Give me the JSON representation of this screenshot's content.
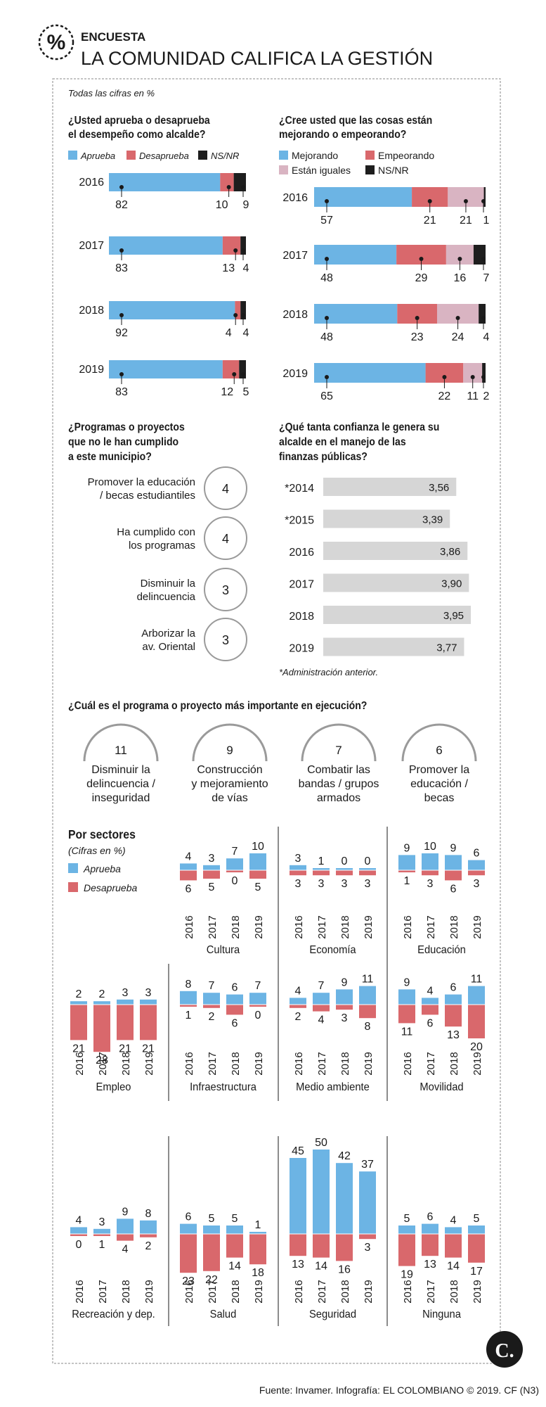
{
  "header": {
    "tag": "ENCUESTA",
    "title": "LA COMUNIDAD CALIFICA LA GESTIÓN",
    "note": "Todas las cifras en %"
  },
  "colors": {
    "aprueba": "#6cb4e4",
    "desaprueba": "#d9686c",
    "iguales": "#d9b4c2",
    "nsnr": "#1e1e1e",
    "gray": "#d6d6d6",
    "line": "#9a9a9a"
  },
  "q1": {
    "title": [
      "¿Usted aprueba o desaprueba",
      "el desempeño como alcalde?"
    ],
    "legend": [
      "Aprueba",
      "Desaprueba",
      "NS/NR"
    ]
  },
  "q2": {
    "title": [
      "¿Cree usted que las cosas están",
      "mejorando o empeorando?"
    ],
    "legend": [
      "Mejorando",
      "Empeorando",
      "Están iguales",
      "NS/NR"
    ]
  },
  "q3": {
    "title": [
      "¿Programas o proyectos",
      "que no le han cumplido",
      "a este municipio?"
    ]
  },
  "q4": {
    "title": [
      "¿Qué tanta confianza le genera su",
      "alcalde en el manejo de las",
      "finanzas públicas?"
    ],
    "footnote": "*Administración anterior."
  },
  "q5": {
    "title": "¿Cuál es el programa o proyecto más importante en ejecución?"
  },
  "sectors": {
    "title": "Por sectores",
    "subtitle": "(Cifras en %)",
    "legend": [
      "Aprueba",
      "Desaprueba"
    ]
  },
  "chart_data": [
    {
      "type": "bar",
      "title": "¿Usted aprueba o desaprueba el desempeño como alcalde?",
      "categories": [
        "2016",
        "2017",
        "2018",
        "2019"
      ],
      "series": [
        {
          "name": "Aprueba",
          "values": [
            82,
            83,
            92,
            83
          ]
        },
        {
          "name": "Desaprueba",
          "values": [
            10,
            13,
            4,
            12
          ]
        },
        {
          "name": "NS/NR",
          "values": [
            9,
            4,
            4,
            5
          ]
        }
      ]
    },
    {
      "type": "bar",
      "title": "¿Cree usted que las cosas están mejorando o empeorando?",
      "categories": [
        "2016",
        "2017",
        "2018",
        "2019"
      ],
      "series": [
        {
          "name": "Mejorando",
          "values": [
            57,
            48,
            48,
            65
          ]
        },
        {
          "name": "Empeorando",
          "values": [
            21,
            29,
            23,
            22
          ]
        },
        {
          "name": "Están iguales",
          "values": [
            21,
            16,
            24,
            11
          ]
        },
        {
          "name": "NS/NR",
          "values": [
            1,
            7,
            4,
            2
          ]
        }
      ]
    },
    {
      "type": "table",
      "title": "¿Programas o proyectos que no le han cumplido a este municipio?",
      "rows": [
        {
          "label": [
            "Promover la educación",
            "/ becas estudiantiles"
          ],
          "value": 4
        },
        {
          "label": [
            "Ha cumplido con",
            "los programas"
          ],
          "value": 4
        },
        {
          "label": [
            "Disminuir la",
            "delincuencia"
          ],
          "value": 3
        },
        {
          "label": [
            "Arborizar la",
            "av. Oriental"
          ],
          "value": 3
        }
      ]
    },
    {
      "type": "bar",
      "title": "¿Qué tanta confianza le genera su alcalde en el manejo de las finanzas públicas?",
      "categories": [
        "*2014",
        "*2015",
        "2016",
        "2017",
        "2018",
        "2019"
      ],
      "values": [
        3.56,
        3.39,
        3.86,
        3.9,
        3.95,
        3.77
      ],
      "labels": [
        "3,56",
        "3,39",
        "3,86",
        "3,90",
        "3,95",
        "3,77"
      ]
    },
    {
      "type": "table",
      "title": "¿Cuál es el programa o proyecto más importante en ejecución?",
      "items": [
        {
          "value": 11,
          "label": [
            "Disminuir la",
            "delincuencia /",
            "inseguridad"
          ]
        },
        {
          "value": 9,
          "label": [
            "Construcción",
            "y mejoramiento",
            "de vías"
          ]
        },
        {
          "value": 7,
          "label": [
            "Combatir las",
            "bandas / grupos",
            "armados"
          ]
        },
        {
          "value": 6,
          "label": [
            "Promover la",
            "educación /",
            "becas"
          ]
        }
      ]
    },
    {
      "type": "bar",
      "title": "Por sectores",
      "years": [
        "2016",
        "2017",
        "2018",
        "2019"
      ],
      "sectors": [
        {
          "name": "Cultura",
          "aprueba": [
            4,
            3,
            7,
            10
          ],
          "desaprueba": [
            6,
            5,
            0,
            5
          ]
        },
        {
          "name": "Economía",
          "aprueba": [
            3,
            1,
            0,
            0
          ],
          "desaprueba": [
            3,
            3,
            3,
            3
          ]
        },
        {
          "name": "Educación",
          "aprueba": [
            9,
            10,
            9,
            6
          ],
          "desaprueba": [
            1,
            3,
            6,
            3
          ]
        },
        {
          "name": "Empleo",
          "aprueba": [
            2,
            2,
            3,
            3
          ],
          "desaprueba": [
            21,
            28,
            21,
            21
          ]
        },
        {
          "name": "Infraestructura",
          "aprueba": [
            8,
            7,
            6,
            7
          ],
          "desaprueba": [
            1,
            2,
            6,
            0
          ]
        },
        {
          "name": "Medio ambiente",
          "aprueba": [
            4,
            7,
            9,
            11
          ],
          "desaprueba": [
            2,
            4,
            3,
            8
          ]
        },
        {
          "name": "Movilidad",
          "aprueba": [
            9,
            4,
            6,
            11
          ],
          "desaprueba": [
            11,
            6,
            13,
            20
          ]
        },
        {
          "name": "Recreación y dep.",
          "aprueba": [
            4,
            3,
            9,
            8
          ],
          "desaprueba": [
            0,
            1,
            4,
            2
          ]
        },
        {
          "name": "Salud",
          "aprueba": [
            6,
            5,
            5,
            1
          ],
          "desaprueba": [
            23,
            22,
            14,
            18
          ]
        },
        {
          "name": "Seguridad",
          "aprueba": [
            45,
            50,
            42,
            37
          ],
          "desaprueba": [
            13,
            14,
            16,
            3
          ]
        },
        {
          "name": "Ninguna",
          "aprueba": [
            5,
            6,
            4,
            5
          ],
          "desaprueba": [
            19,
            13,
            14,
            17
          ]
        }
      ]
    }
  ],
  "footer": "Fuente: Invamer. Infografía: EL COLOMBIANO © 2019. CF (N3)",
  "logo_letter": "C."
}
